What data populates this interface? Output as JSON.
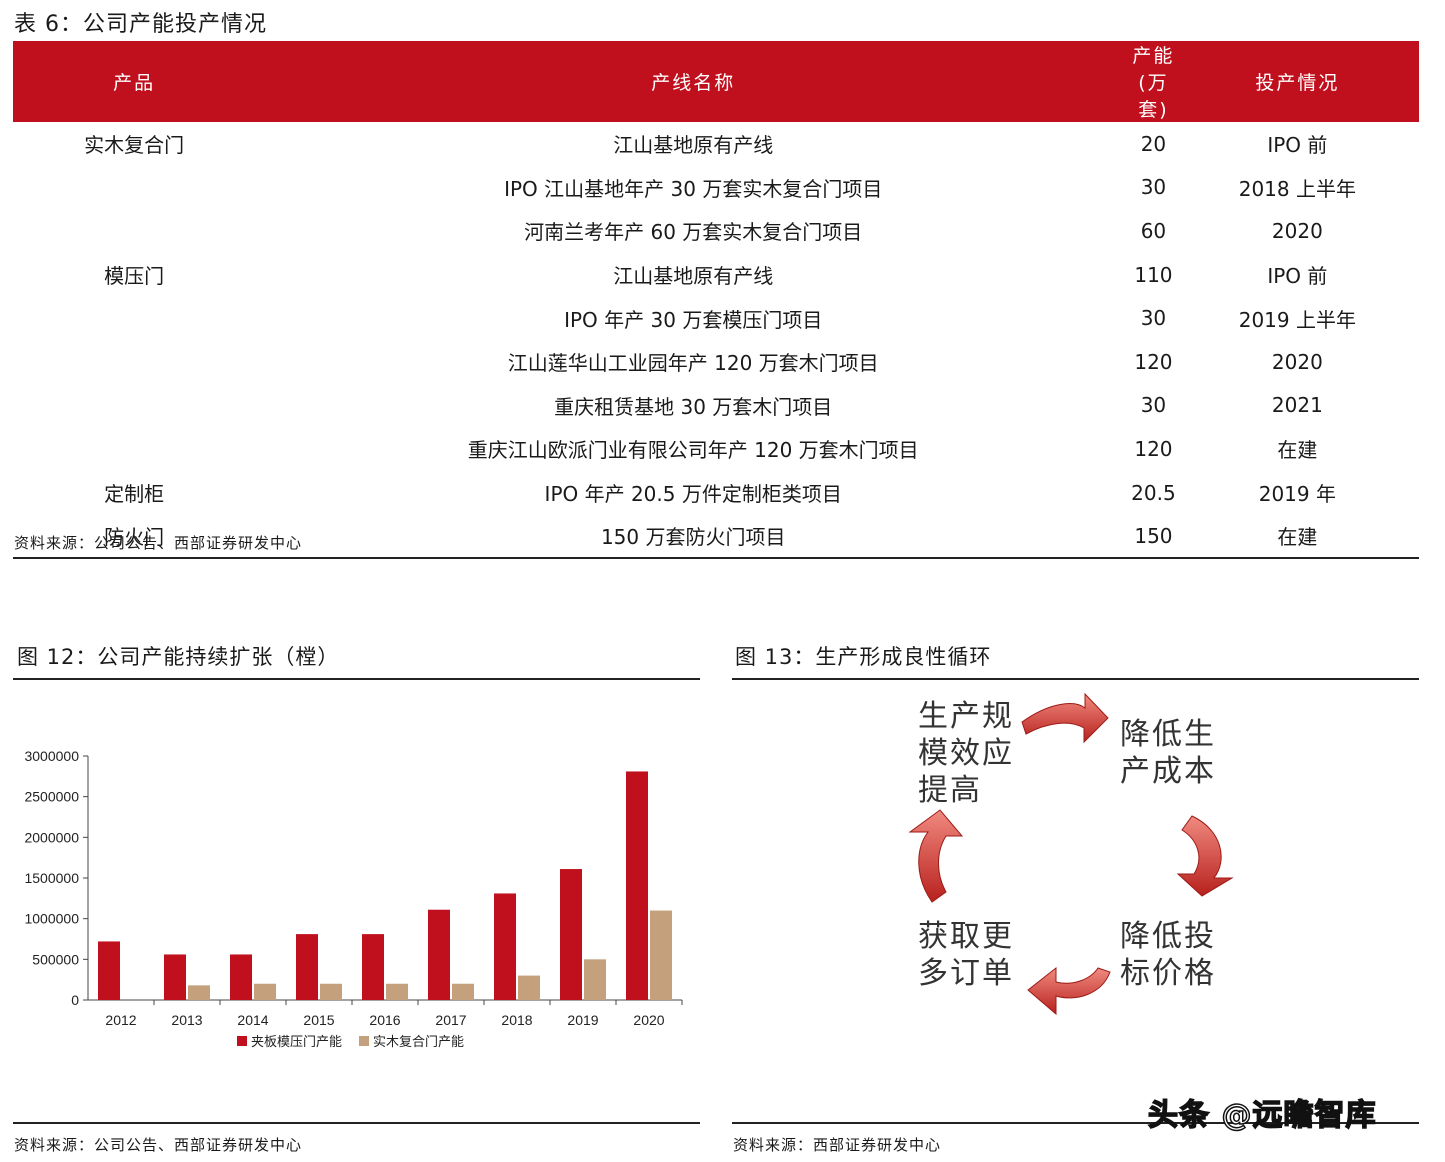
{
  "table": {
    "title": "表 6：公司产能投产情况",
    "headers": [
      "产品",
      "产线名称",
      "产能(万套)",
      "投产情况"
    ],
    "rows": [
      [
        "实木复合门",
        "江山基地原有产线",
        "20",
        "IPO 前"
      ],
      [
        "",
        "IPO 江山基地年产 30 万套实木复合门项目",
        "30",
        "2018 上半年"
      ],
      [
        "",
        "河南兰考年产 60 万套实木复合门项目",
        "60",
        "2020"
      ],
      [
        "模压门",
        "江山基地原有产线",
        "110",
        "IPO 前"
      ],
      [
        "",
        "IPO 年产 30 万套模压门项目",
        "30",
        "2019 上半年"
      ],
      [
        "",
        "江山莲华山工业园年产 120  万套木门项目",
        "120",
        "2020"
      ],
      [
        "",
        "重庆租赁基地 30 万套木门项目",
        "30",
        "2021"
      ],
      [
        "",
        "重庆江山欧派门业有限公司年产 120  万套木门项目",
        "120",
        "在建"
      ],
      [
        "定制柜",
        "IPO 年产 20.5 万件定制柜类项目",
        "20.5",
        "2019 年"
      ],
      [
        "防火门",
        "150 万套防火门项目",
        "150",
        "在建"
      ]
    ],
    "source": "资料来源：公司公告、西部证券研发中心"
  },
  "fig12": {
    "title": "图 12：公司产能持续扩张（樘）",
    "source": "资料来源：公司公告、西部证券研发中心"
  },
  "fig13": {
    "title": "图 13：生产形成良性循环",
    "source": "资料来源：西部证券研发中心",
    "steps": [
      "生产规\n模效应\n提高",
      "降低生\n产成本",
      "降低投\n标价格",
      "获取更\n多订单"
    ],
    "arrow_color": "#d9433e"
  },
  "watermark": "头条 @远瞻智库",
  "chart_data": {
    "type": "bar",
    "categories": [
      "2012",
      "2013",
      "2014",
      "2015",
      "2016",
      "2017",
      "2018",
      "2019",
      "2020"
    ],
    "series": [
      {
        "name": "夹板模压门产能",
        "color": "#c0101e",
        "values": [
          720000,
          560000,
          560000,
          810000,
          810000,
          1110000,
          1310000,
          1610000,
          2810000
        ]
      },
      {
        "name": "实木复合门产能",
        "color": "#c4a07d",
        "values": [
          0,
          180000,
          200000,
          200000,
          200000,
          200000,
          300000,
          500000,
          1100000
        ]
      }
    ],
    "yticks": [
      "0",
      "500000",
      "1000000",
      "1500000",
      "2000000",
      "2500000",
      "3000000"
    ],
    "ylim": [
      0,
      3000000
    ],
    "legend": "bottom"
  }
}
